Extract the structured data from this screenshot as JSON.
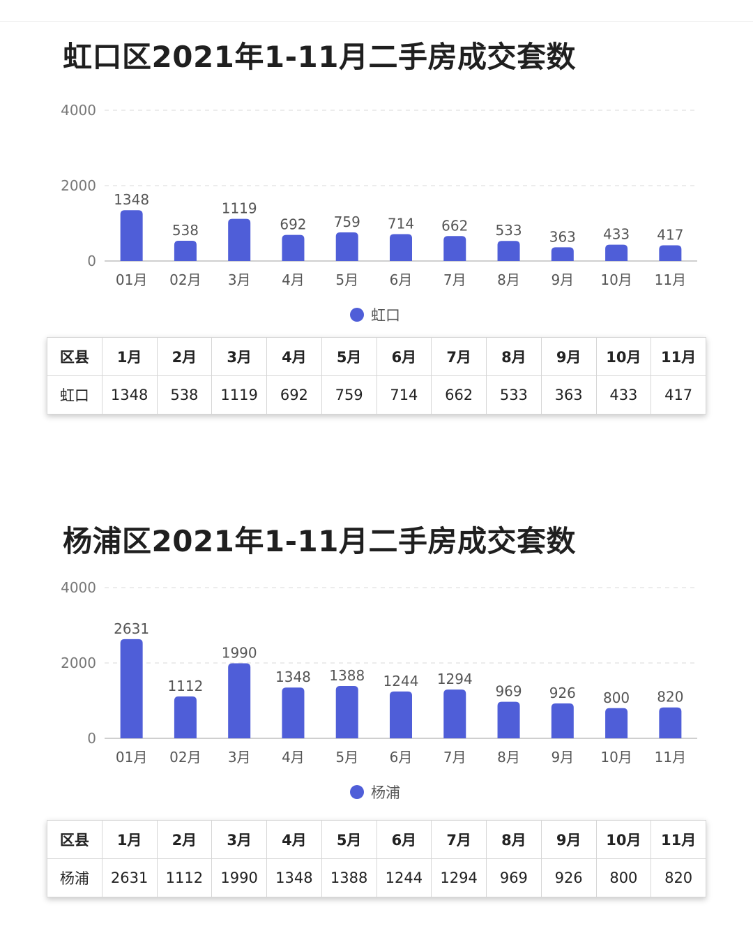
{
  "charts": [
    {
      "title": "虹口区2021年1-11月二手房成交套数",
      "legend": "虹口",
      "table": {
        "header": [
          "区县",
          "1月",
          "2月",
          "3月",
          "4月",
          "5月",
          "6月",
          "7月",
          "8月",
          "9月",
          "10月",
          "11月"
        ],
        "row": [
          "虹口",
          "1348",
          "538",
          "1119",
          "692",
          "759",
          "714",
          "662",
          "533",
          "363",
          "433",
          "417"
        ]
      }
    },
    {
      "title": "杨浦区2021年1-11月二手房成交套数",
      "legend": "杨浦",
      "table": {
        "header": [
          "区县",
          "1月",
          "2月",
          "3月",
          "4月",
          "5月",
          "6月",
          "7月",
          "8月",
          "9月",
          "10月",
          "11月"
        ],
        "row": [
          "杨浦",
          "2631",
          "1112",
          "1990",
          "1348",
          "1388",
          "1244",
          "1294",
          "969",
          "926",
          "800",
          "820"
        ]
      }
    }
  ],
  "chart_data": [
    {
      "type": "bar",
      "categories": [
        "01月",
        "02月",
        "3月",
        "4月",
        "5月",
        "6月",
        "7月",
        "8月",
        "9月",
        "10月",
        "11月"
      ],
      "series": [
        {
          "name": "虹口",
          "values": [
            1348,
            538,
            1119,
            692,
            759,
            714,
            662,
            533,
            363,
            433,
            417
          ]
        }
      ],
      "ylim": [
        0,
        4000
      ],
      "yticks": [
        0,
        2000,
        4000
      ],
      "grid": true,
      "legend": "bottom-center",
      "bar_color": "#4f5ed8"
    },
    {
      "type": "bar",
      "categories": [
        "01月",
        "02月",
        "3月",
        "4月",
        "5月",
        "6月",
        "7月",
        "8月",
        "9月",
        "10月",
        "11月"
      ],
      "series": [
        {
          "name": "杨浦",
          "values": [
            2631,
            1112,
            1990,
            1348,
            1388,
            1244,
            1294,
            969,
            926,
            800,
            820
          ]
        }
      ],
      "ylim": [
        0,
        4000
      ],
      "yticks": [
        0,
        2000,
        4000
      ],
      "grid": true,
      "legend": "bottom-center",
      "bar_color": "#4f5ed8"
    }
  ]
}
